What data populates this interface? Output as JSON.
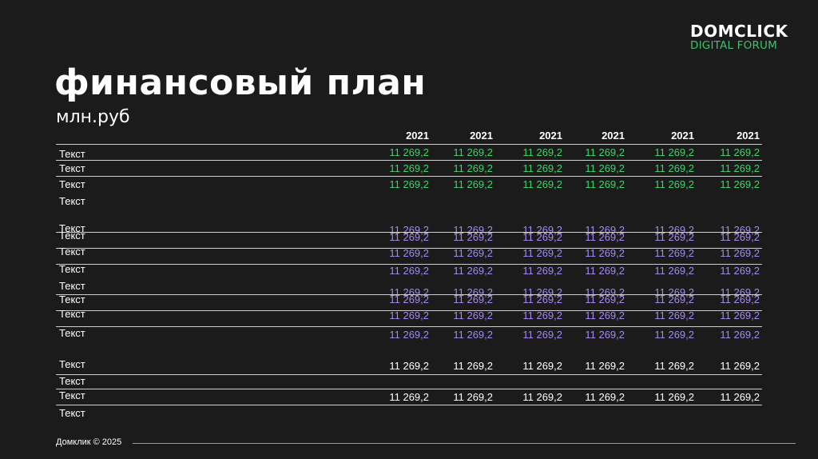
{
  "logo": {
    "main": "DOMCLICK",
    "sub": "DIGITAL FORUM"
  },
  "title": "финансовый план",
  "subtitle": "млн.руб",
  "years": [
    "2021",
    "2021",
    "2021",
    "2021",
    "2021",
    "2021"
  ],
  "colors": {
    "green": "#3fd36b",
    "purple": "#a48af0",
    "white": "#ffffff",
    "background": "#1b1b1b"
  },
  "rows": [
    {
      "label": "Текст",
      "values": [
        "11 269,2",
        "11 269,2",
        "11 269,2",
        "11 269,2",
        "11 269,2",
        "11 269,2"
      ],
      "color": "green"
    },
    {
      "label": "Текст",
      "values": [
        "11 269,2",
        "11 269,2",
        "11 269,2",
        "11 269,2",
        "11 269,2",
        "11 269,2"
      ],
      "color": "green"
    },
    {
      "label": "Текст",
      "values": [
        "11 269,2",
        "11 269,2",
        "11 269,2",
        "11 269,2",
        "11 269,2",
        "11 269,2"
      ],
      "color": "green"
    },
    {
      "label": "Текст",
      "values": [],
      "color": "white"
    },
    {
      "label": "Текст",
      "values": [
        "11 269,2",
        "11 269,2",
        "11 269,2",
        "11 269,2",
        "11 269,2",
        "11 269,2"
      ],
      "color": "purple"
    },
    {
      "label": "Текст",
      "values": [
        "11 269,2",
        "11 269,2",
        "11 269,2",
        "11 269,2",
        "11 269,2",
        "11 269,2"
      ],
      "color": "purple"
    },
    {
      "label": "Текст",
      "values": [
        "11 269,2",
        "11 269,2",
        "11 269,2",
        "11 269,2",
        "11 269,2",
        "11 269,2"
      ],
      "color": "purple"
    },
    {
      "label": "Текст",
      "values": [
        "11 269,2",
        "11 269,2",
        "11 269,2",
        "11 269,2",
        "11 269,2",
        "11 269,2"
      ],
      "color": "purple"
    },
    {
      "label": "Текст",
      "values": [
        "11 269,2",
        "11 269,2",
        "11 269,2",
        "11 269,2",
        "11 269,2",
        "11 269,2"
      ],
      "color": "purple"
    },
    {
      "label": "Текст",
      "values": [
        "11 269,2",
        "11 269,2",
        "11 269,2",
        "11 269,2",
        "11 269,2",
        "11 269,2"
      ],
      "color": "purple"
    },
    {
      "label": "Текст",
      "values": [
        "11 269,2",
        "11 269,2",
        "11 269,2",
        "11 269,2",
        "11 269,2",
        "11 269,2"
      ],
      "color": "purple"
    },
    {
      "label": "Текст",
      "values": [
        "11 269,2",
        "11 269,2",
        "11 269,2",
        "11 269,2",
        "11 269,2",
        "11 269,2"
      ],
      "color": "purple"
    },
    {
      "label": "Текст",
      "values": [
        "11 269,2",
        "11 269,2",
        "11 269,2",
        "11 269,2",
        "11 269,2",
        "11 269,2"
      ],
      "color": "white"
    },
    {
      "label": "Текст",
      "values": [],
      "color": "white"
    },
    {
      "label": "Текст",
      "values": [
        "11 269,2",
        "11 269,2",
        "11 269,2",
        "11 269,2",
        "11 269,2",
        "11 269,2"
      ],
      "color": "white"
    },
    {
      "label": "Текст",
      "values": [],
      "color": "white"
    }
  ],
  "footer": "Домклик © 2025"
}
